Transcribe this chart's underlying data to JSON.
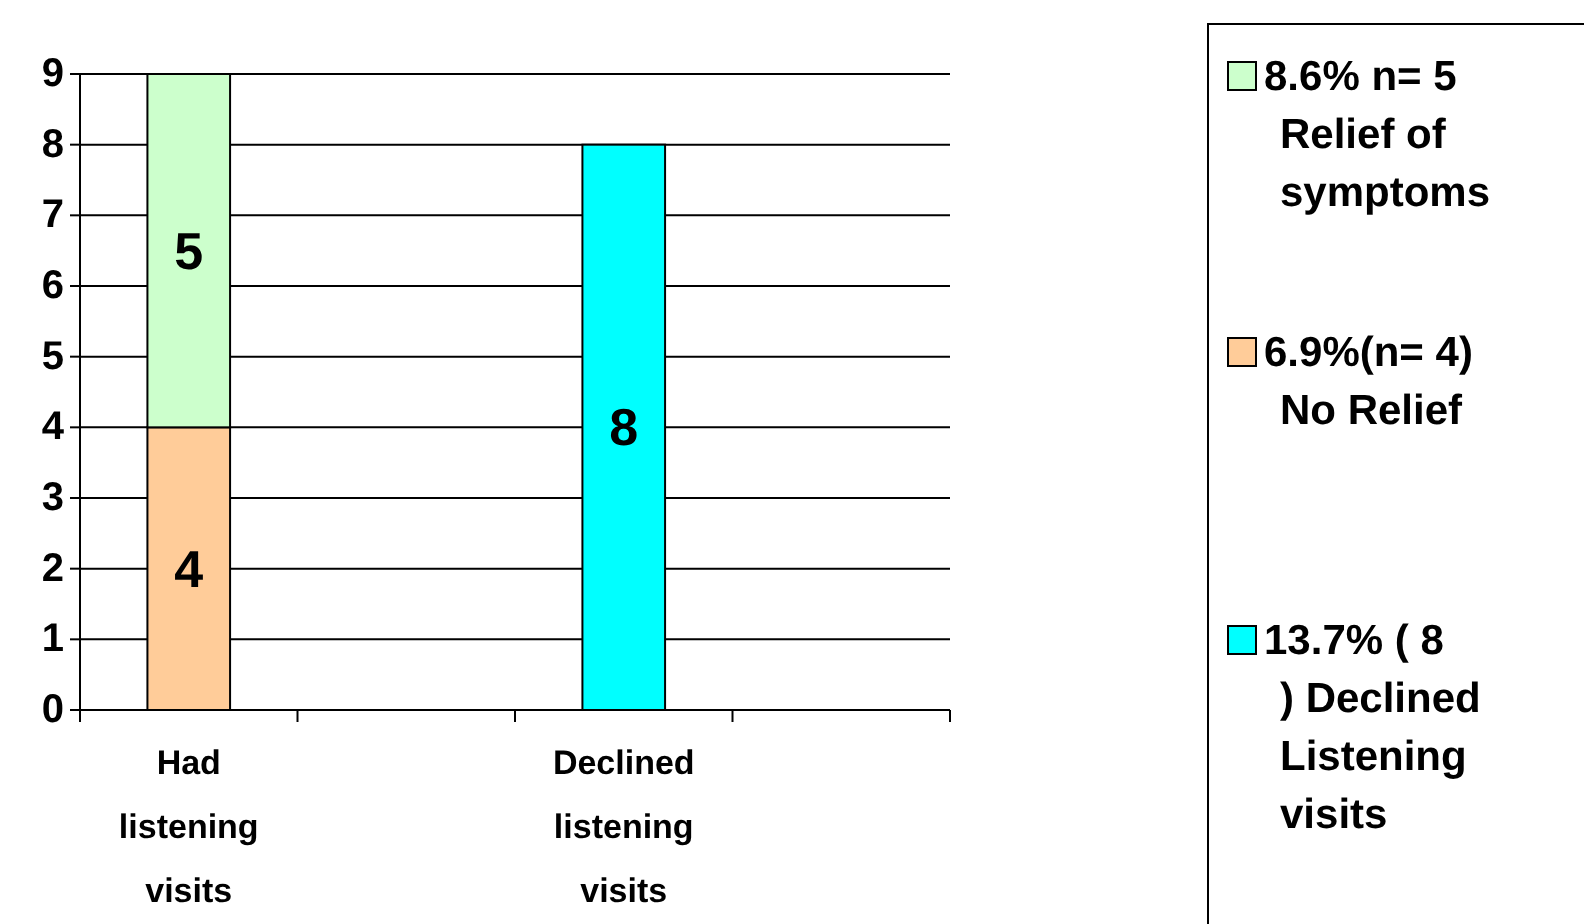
{
  "chart_data": {
    "type": "bar",
    "stacked": true,
    "categories": [
      "Had listening visits",
      null,
      "Declined listening visits",
      null
    ],
    "series": [
      {
        "name": "13.7% ( 8 ) Declined Listening visits",
        "color": "#00ffff",
        "values": [
          null,
          null,
          8,
          null
        ]
      },
      {
        "name": "6.9%(n= 4) No Relief",
        "color": "#ffcc99",
        "values": [
          4,
          null,
          null,
          null
        ]
      },
      {
        "name": "8.6% n= 5 Relief of symptoms",
        "color": "#ccffcc",
        "values": [
          5,
          null,
          null,
          null
        ]
      }
    ],
    "ylim": [
      0,
      9
    ],
    "yticks": [
      0,
      1,
      2,
      3,
      4,
      5,
      6,
      7,
      8,
      9
    ],
    "grid": "y",
    "data_labels": true,
    "legend": "right"
  }
}
